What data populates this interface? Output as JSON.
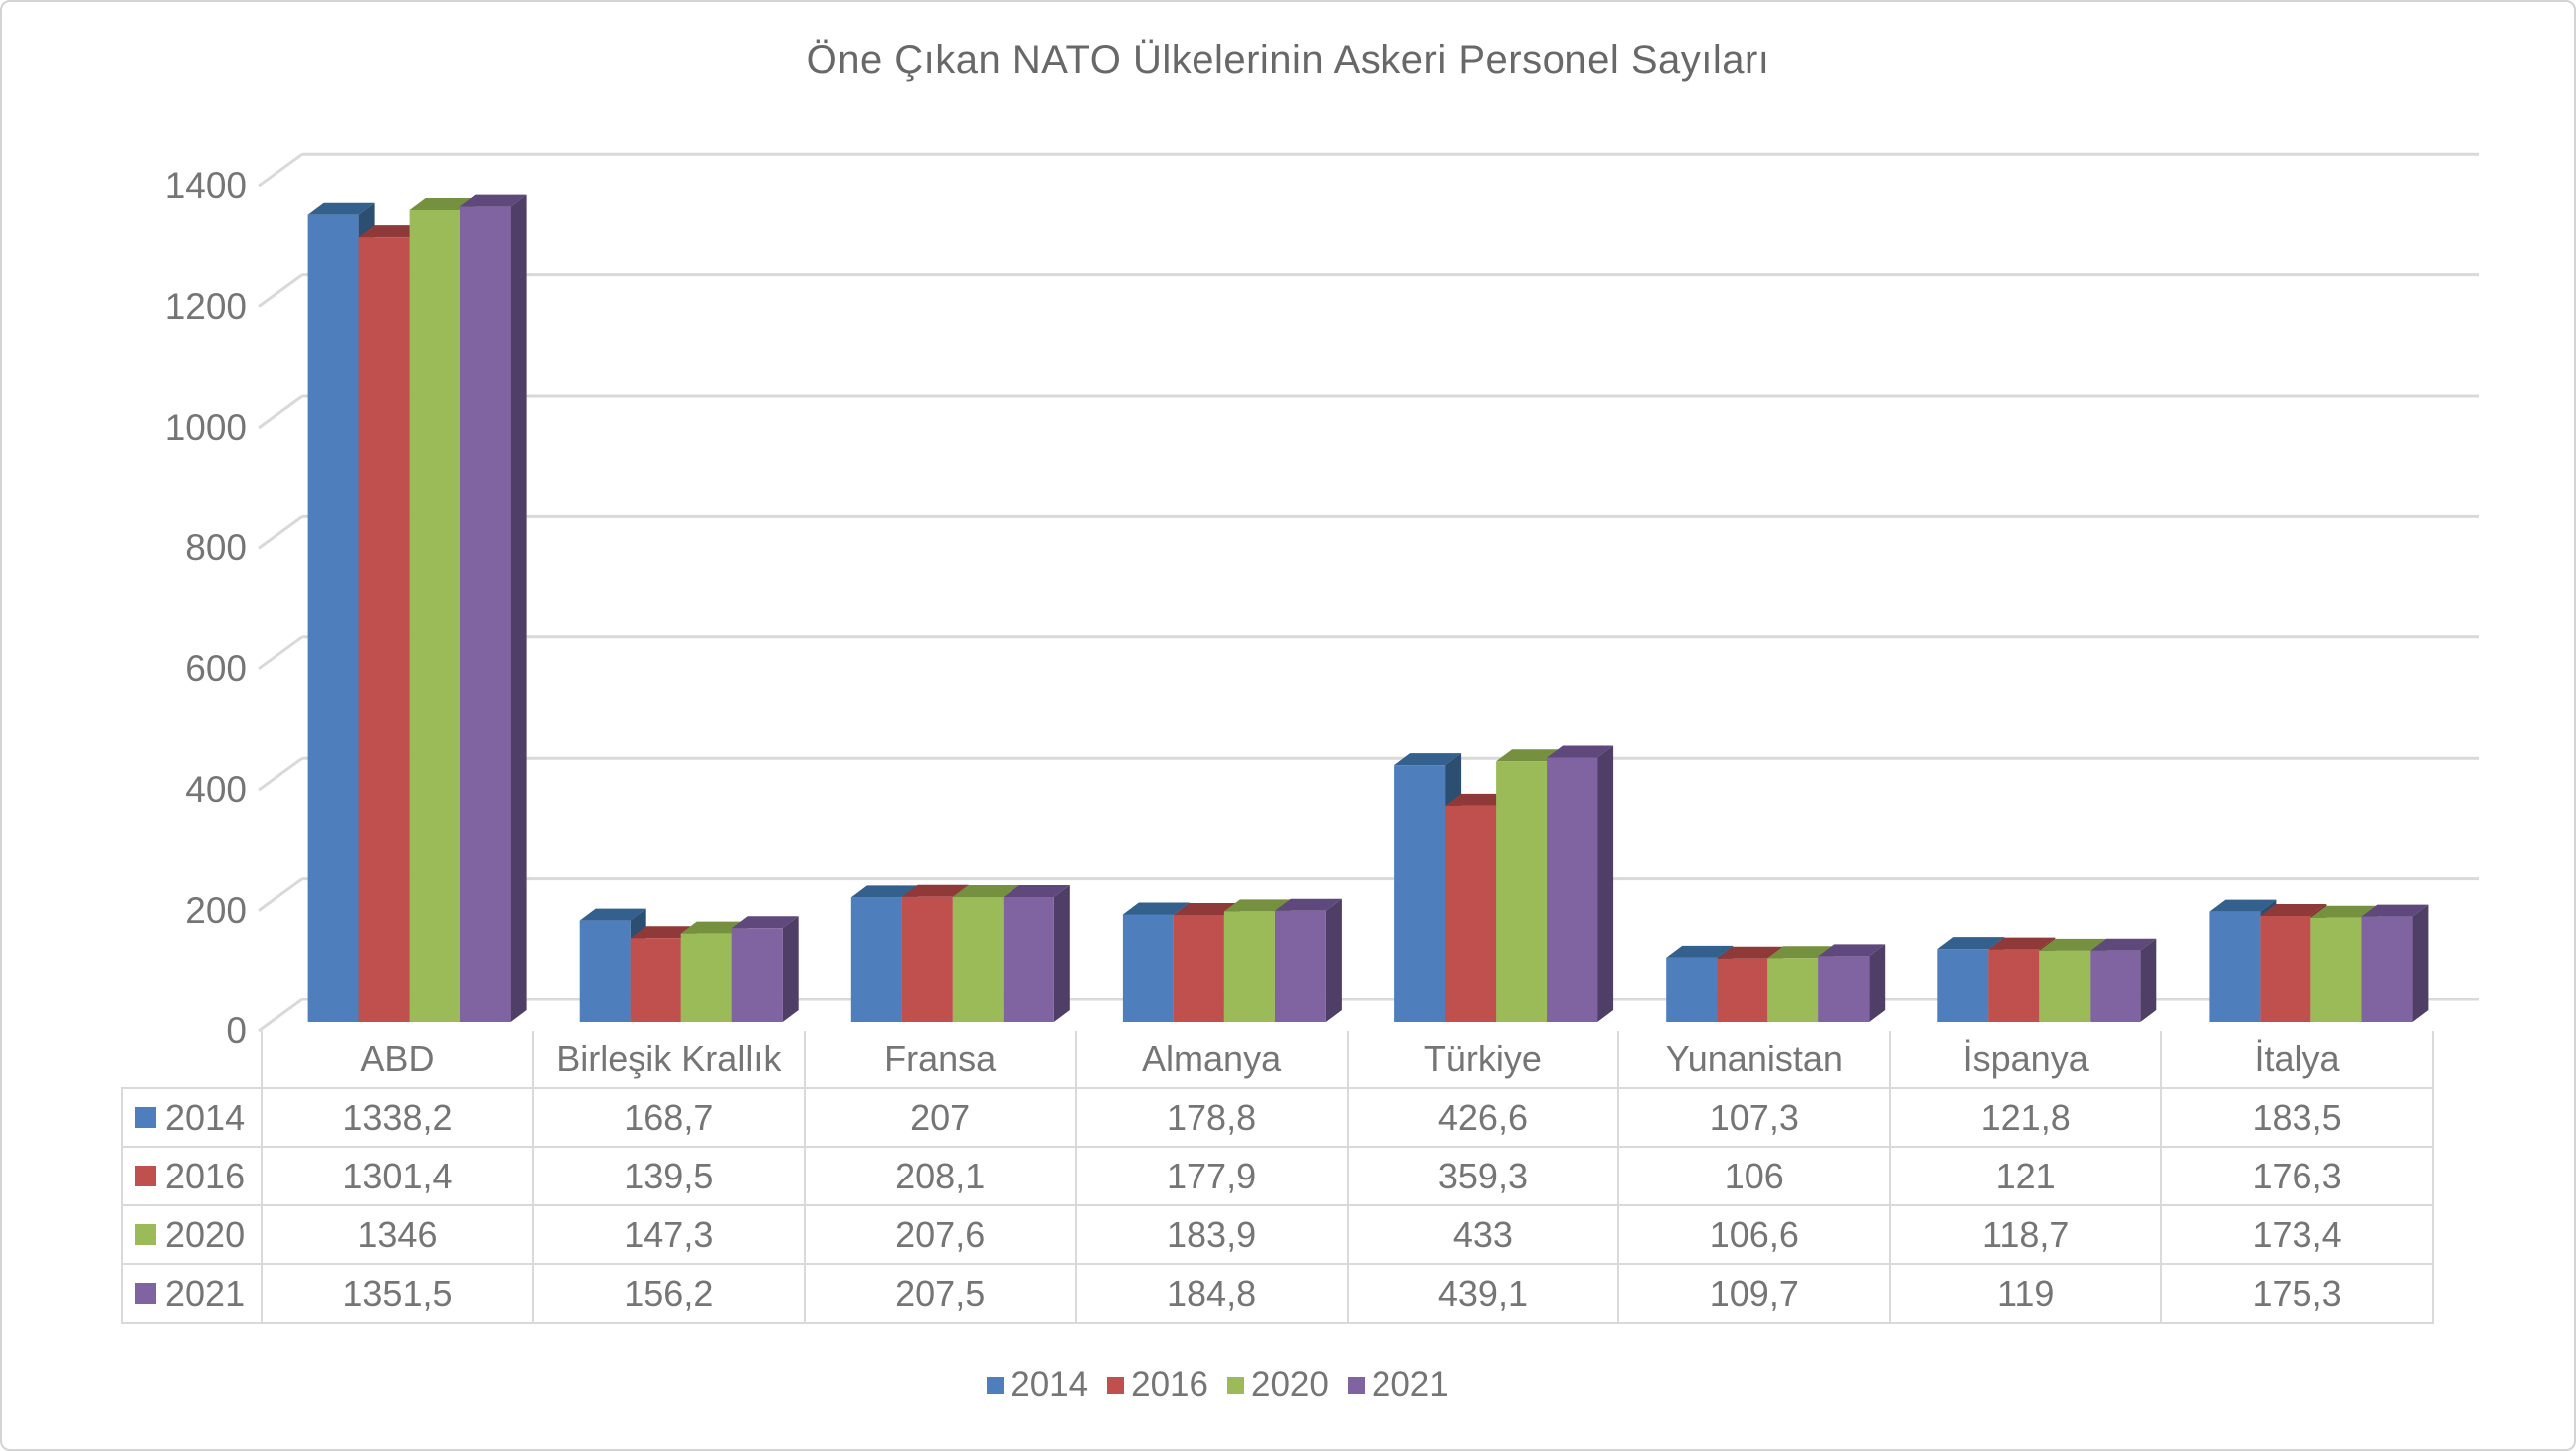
{
  "chart_data": {
    "type": "bar",
    "style": "3d-column",
    "title": "Öne Çıkan NATO Ülkelerinin Askeri Personel Sayıları",
    "xlabel": "",
    "ylabel": "",
    "ylim": [
      0,
      1400
    ],
    "y_ticks": [
      0,
      200,
      400,
      600,
      800,
      1000,
      1200,
      1400
    ],
    "y_tick_labels": [
      "0",
      "200",
      "400",
      "600",
      "800",
      "1000",
      "1200",
      "1400"
    ],
    "grid": true,
    "legend_position": "bottom",
    "data_table_attached": true,
    "categories": [
      "ABD",
      "Birleşik Krallık",
      "Fransa",
      "Almanya",
      "Türkiye",
      "Yunanistan",
      "İspanya",
      "İtalya"
    ],
    "series": [
      {
        "name": "2014",
        "color": "#4E7FBC",
        "color_top": "#33608C",
        "color_side": "#2B4E71",
        "values": [
          1338.2,
          168.7,
          207,
          178.8,
          426.6,
          107.3,
          121.8,
          183.5
        ],
        "display": [
          "1338,2",
          "168,7",
          "207",
          "178,8",
          "426,6",
          "107,3",
          "121,8",
          "183,5"
        ]
      },
      {
        "name": "2016",
        "color": "#C0504D",
        "color_top": "#8F3A38",
        "color_side": "#77302E",
        "values": [
          1301.4,
          139.5,
          208.1,
          177.9,
          359.3,
          106,
          121,
          176.3
        ],
        "display": [
          "1301,4",
          "139,5",
          "208,1",
          "177,9",
          "359,3",
          "106",
          "121",
          "176,3"
        ]
      },
      {
        "name": "2020",
        "color": "#9BBB59",
        "color_top": "#75913F",
        "color_side": "#617B34",
        "values": [
          1346,
          147.3,
          207.6,
          183.9,
          433,
          106.6,
          118.7,
          173.4
        ],
        "display": [
          "1346",
          "147,3",
          "207,6",
          "183,9",
          "433",
          "106,6",
          "118,7",
          "173,4"
        ]
      },
      {
        "name": "2021",
        "color": "#8064A2",
        "color_top": "#5F497C",
        "color_side": "#4F3E66",
        "values": [
          1351.5,
          156.2,
          207.5,
          184.8,
          439.1,
          109.7,
          119,
          175.3
        ],
        "display": [
          "1351,5",
          "156,2",
          "207,5",
          "184,8",
          "439,1",
          "109,7",
          "119",
          "175,3"
        ]
      }
    ],
    "colors": {
      "gridline": "#D9D9D9",
      "axis_text": "#757575",
      "title_text": "#686868"
    }
  }
}
